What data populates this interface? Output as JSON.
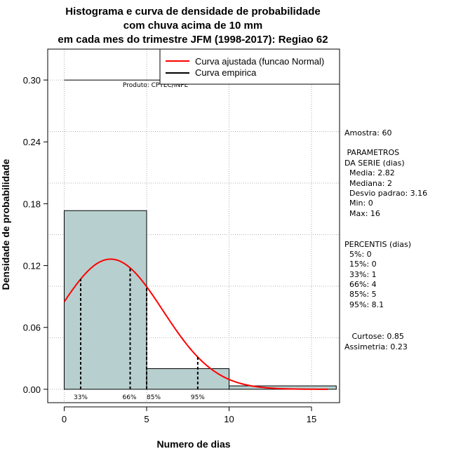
{
  "colors": {
    "bar_fill": "#b8cfcf",
    "normal_curve": "#ff0000",
    "empirical_line": "#000000",
    "grid": "#b0b0b0"
  },
  "chart_data": {
    "type": "bar",
    "title_lines": [
      "Histograma e curva de densidade de probabilidade",
      "com chuva acima de 10 mm",
      "em cada mes do trimestre JFM (1998-2017): Regiao 62"
    ],
    "xlabel": "Numero de dias",
    "ylabel": "Densidade de probabilidade",
    "xlim": [
      -1,
      16.7
    ],
    "ylim": [
      -0.013,
      0.33
    ],
    "x_ticks": [
      0,
      5,
      10,
      15
    ],
    "y_ticks": [
      0.0,
      0.06,
      0.12,
      0.18,
      0.24,
      0.3
    ],
    "y_tick_labels": [
      "0.00",
      "0.06",
      "0.12",
      "0.18",
      "0.24",
      "0.30"
    ],
    "grid_x": [
      0,
      5,
      10,
      15
    ],
    "grid_y": [
      0.0,
      0.05,
      0.1,
      0.15,
      0.2,
      0.25,
      0.3
    ],
    "bins": [
      {
        "start": 0,
        "end": 5,
        "density": 0.1733
      },
      {
        "start": 5,
        "end": 10,
        "density": 0.02
      },
      {
        "start": 10,
        "end": 16.5,
        "density": 0.0033
      }
    ],
    "normal_fit": {
      "mean": 2.82,
      "sd": 3.16,
      "x_start": 0,
      "x_end": 16
    },
    "empirical_line_y": 0.3,
    "percentile_lines": [
      {
        "label": "33%",
        "x": 1
      },
      {
        "label": "66%",
        "x": 4
      },
      {
        "label": "85%",
        "x": 5
      },
      {
        "label": "95%",
        "x": 8.1
      }
    ],
    "legend": [
      {
        "label": "Curva ajustada (funcao Normal)",
        "kind": "normal"
      },
      {
        "label": "Curva empirica",
        "kind": "empirical"
      }
    ],
    "legend_position": "top-right",
    "annotation": "Produto: CPTEC/INPE",
    "side_panel": [
      "Amostra: 60",
      " PARAMETROS",
      "DA SERIE (dias)",
      "  Media: 2.82",
      "  Mediana: 2",
      "  Desvio padrao: 3.16",
      "  Min: 0",
      "  Max: 16",
      "PERCENTIS (dias)",
      "  5%: 0",
      "  15%: 0",
      "  33%: 1",
      "  66%: 4",
      "  85%: 5",
      "  95%: 8.1",
      "   Curtose: 0.85",
      "Assimetria: 0.23"
    ]
  }
}
